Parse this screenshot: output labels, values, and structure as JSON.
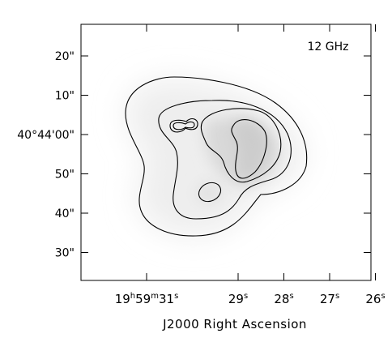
{
  "chart_data": {
    "type": "contour",
    "title": "",
    "annotation": "12 GHz",
    "xlabel": "J2000 Right Ascension",
    "ylabel": "",
    "x_ticks": [
      {
        "label": "19h59m31s",
        "parts": [
          "19",
          "h",
          "59",
          "m",
          "31",
          "s"
        ],
        "ra_s": 31
      },
      {
        "label": "29s",
        "parts": [
          "29",
          "s"
        ],
        "ra_s": 29
      },
      {
        "label": "28s",
        "parts": [
          "28",
          "s"
        ],
        "ra_s": 28
      },
      {
        "label": "27s",
        "parts": [
          "27",
          "s"
        ],
        "ra_s": 27
      },
      {
        "label": "26s",
        "parts": [
          "26",
          "s"
        ],
        "ra_s": 26
      }
    ],
    "y_ticks": [
      {
        "label": "20\"",
        "dec_arcsec": 20
      },
      {
        "label": "10\"",
        "dec_arcsec": 10
      },
      {
        "label": "40°44'00\"",
        "dec_arcsec": 0
      },
      {
        "label": "50\"",
        "dec_arcsec": -10
      },
      {
        "label": "40\"",
        "dec_arcsec": -20
      },
      {
        "label": "30\"",
        "dec_arcsec": -30
      }
    ],
    "contour_levels": 4,
    "grid": false,
    "background": "grayscale intensity"
  }
}
